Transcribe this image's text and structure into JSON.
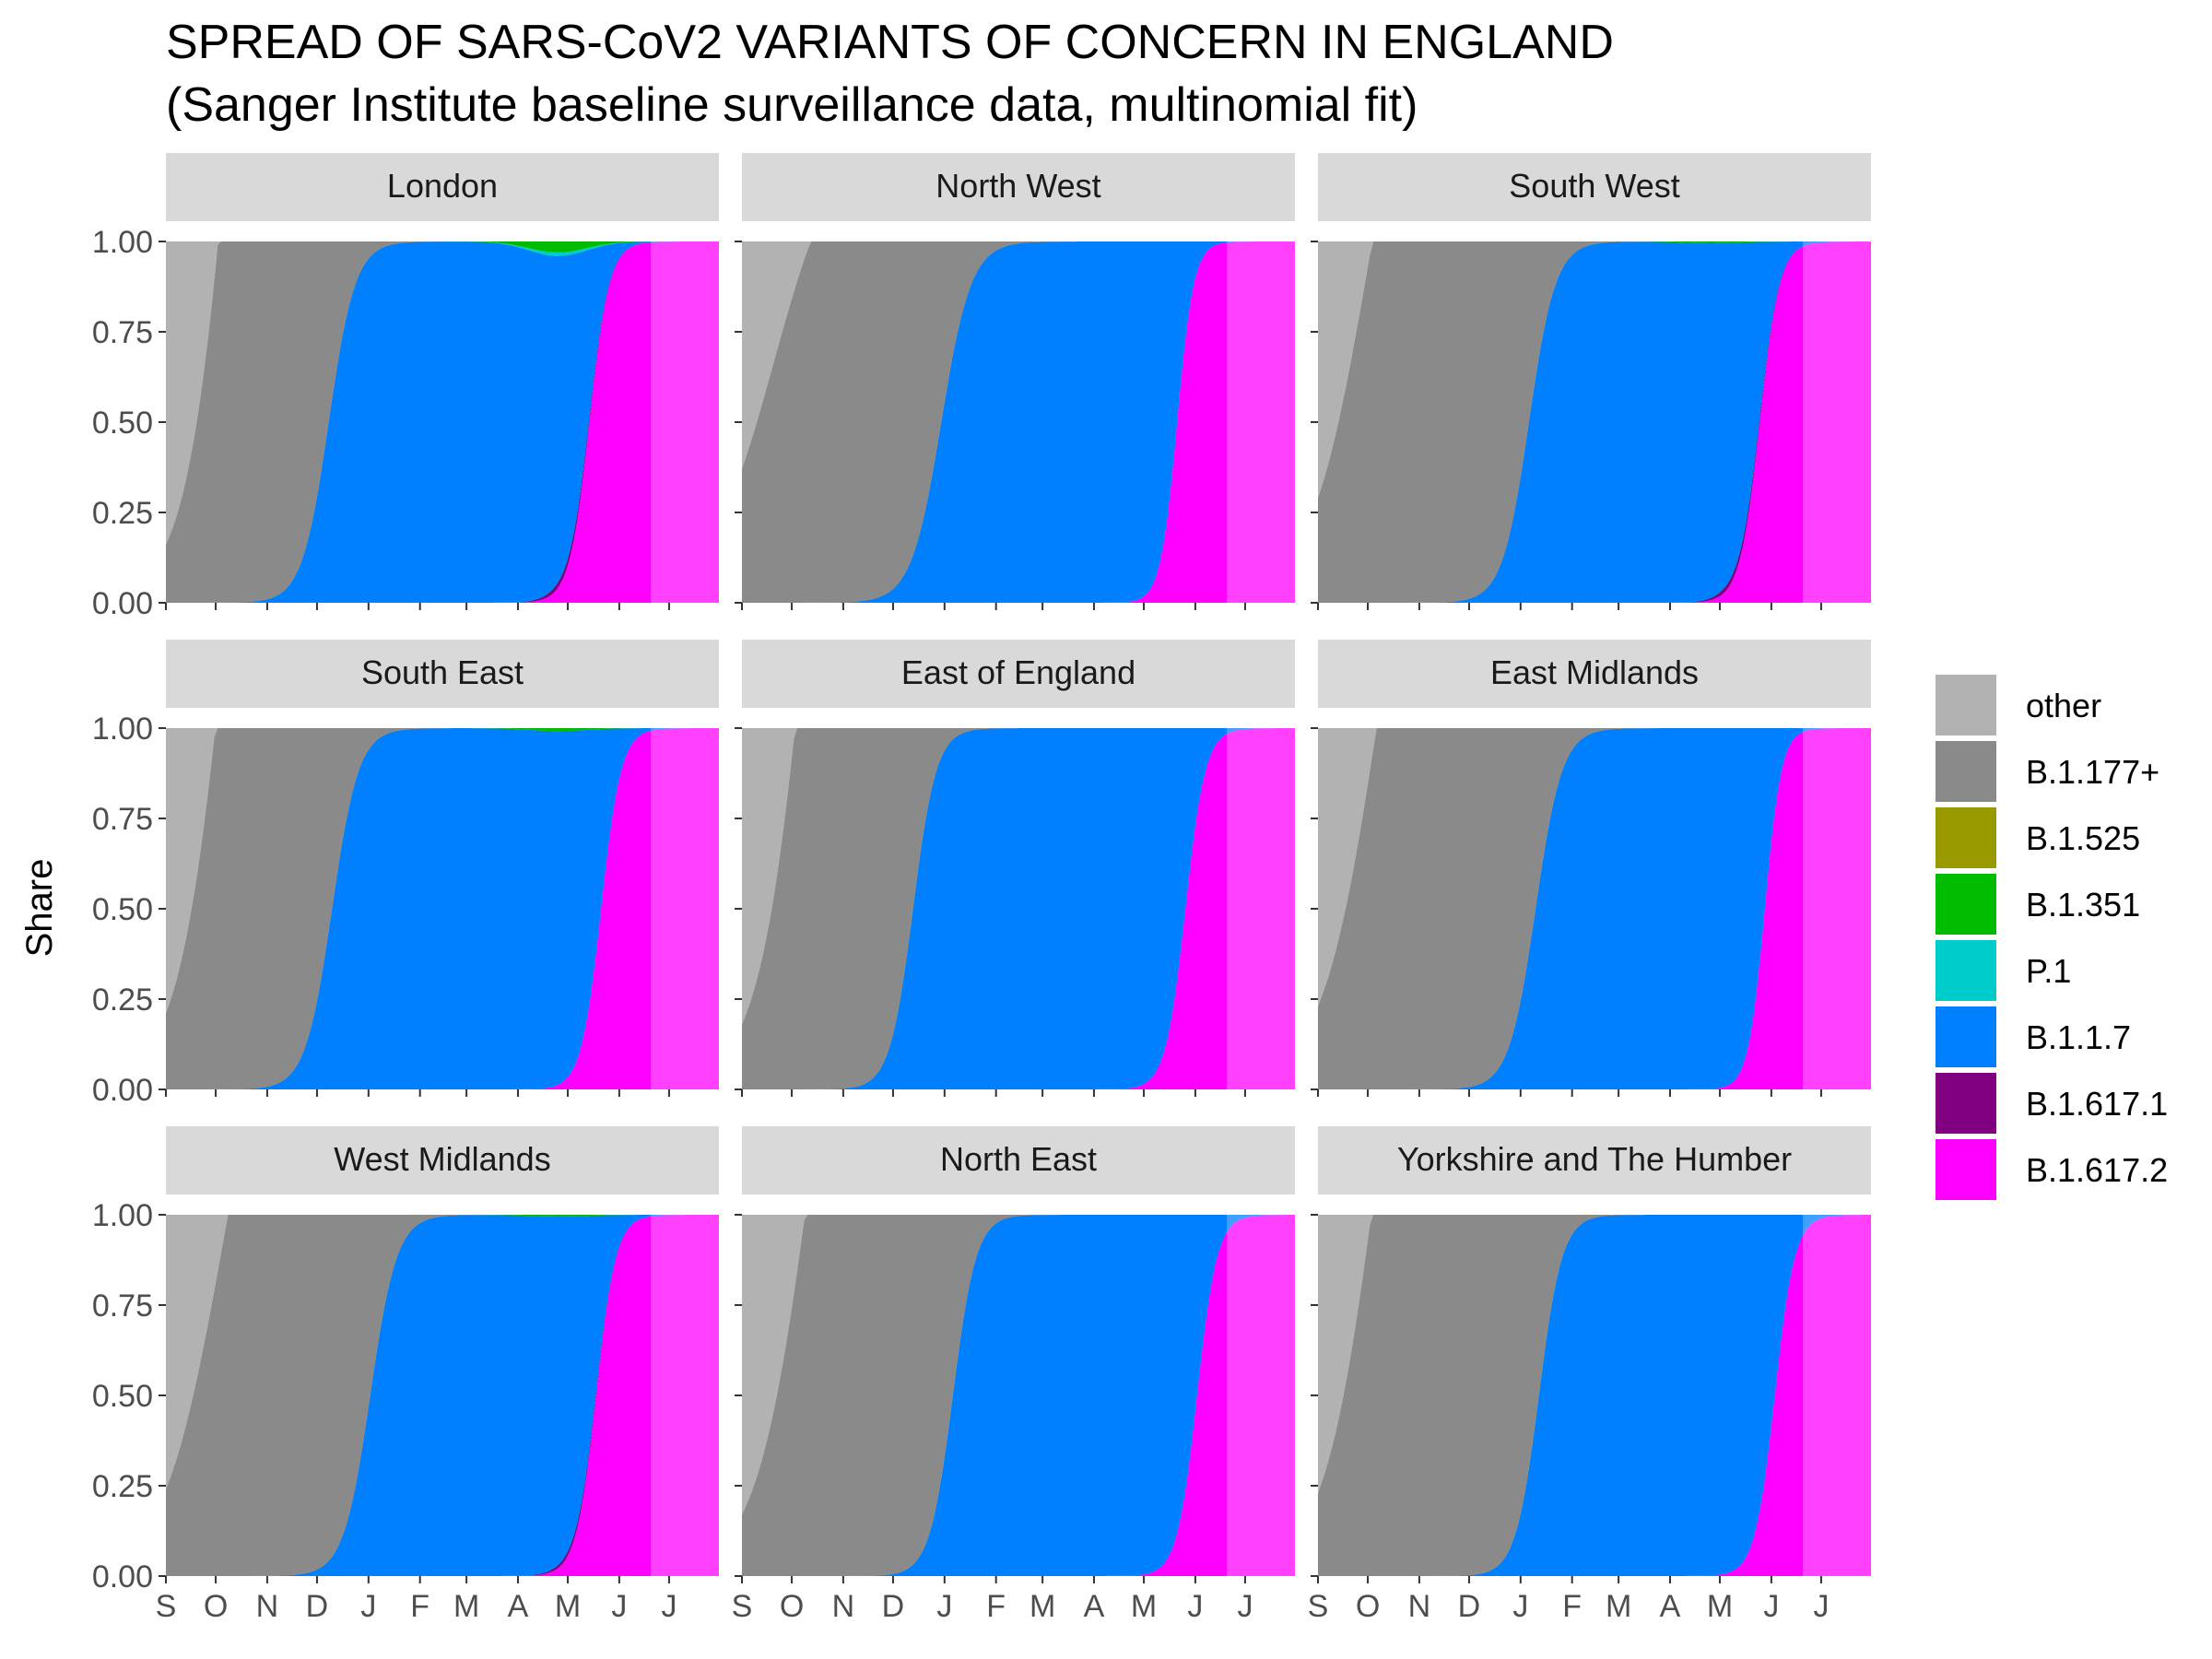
{
  "title": "SPREAD OF SARS-CoV2 VARIANTS OF CONCERN IN ENGLAND",
  "subtitle": "(Sanger Institute baseline surveillance data, multinomial fit)",
  "chart_data": {
    "type": "area",
    "stacked": true,
    "ylabel": "Share",
    "xlabel": "",
    "ylim": [
      0,
      1
    ],
    "y_ticks": [
      "0.00",
      "0.25",
      "0.50",
      "0.75",
      "1.00"
    ],
    "x_ticks": [
      "S",
      "O",
      "N",
      "D",
      "J",
      "F",
      "M",
      "A",
      "M",
      "J",
      "J"
    ],
    "x_range": [
      "2020-09-01",
      "2021-07-31"
    ],
    "x_tick_dates": [
      "2020-09-01",
      "2020-10-01",
      "2020-11-01",
      "2020-12-01",
      "2021-01-01",
      "2021-02-01",
      "2021-03-01",
      "2021-04-01",
      "2021-05-01",
      "2021-06-01",
      "2021-07-01"
    ],
    "forecast_start": "2021-06-20",
    "legend": {
      "position": "right",
      "entries": [
        {
          "name": "other",
          "color": "#b2b2b2"
        },
        {
          "name": "B.1.177+",
          "color": "#8a8a8a"
        },
        {
          "name": "B.1.525",
          "color": "#999900"
        },
        {
          "name": "B.1.351",
          "color": "#00bb00"
        },
        {
          "name": "P.1",
          "color": "#00cccc"
        },
        {
          "name": "B.1.1.7",
          "color": "#0080ff"
        },
        {
          "name": "B.1.617.1",
          "color": "#800080"
        },
        {
          "name": "B.1.617.2",
          "color": "#ff00ff"
        }
      ]
    },
    "panels": [
      {
        "name": "London",
        "b177_top_start": 0.16,
        "b177_mid": "2020-10-18",
        "b177_scale": 15,
        "b117_mid": "2020-12-08",
        "b117_scale": 8,
        "b16172_mid": "2021-05-14",
        "b16172_scale": 6,
        "b16171_max": 0.02,
        "b1351_peak": 0.03,
        "p1_peak": 0.01
      },
      {
        "name": "North West",
        "b177_top_start": 0.37,
        "b177_mid": "2020-09-20",
        "b177_scale": 20,
        "b117_mid": "2020-12-30",
        "b117_scale": 9,
        "b16172_mid": "2021-05-21",
        "b16172_scale": 5,
        "b16171_max": 0.0,
        "b1351_peak": 0.0,
        "p1_peak": 0.0
      },
      {
        "name": "South West",
        "b177_top_start": 0.29,
        "b177_mid": "2020-10-02",
        "b177_scale": 18,
        "b117_mid": "2021-01-06",
        "b117_scale": 8,
        "b16172_mid": "2021-05-25",
        "b16172_scale": 6,
        "b16171_max": 0.02,
        "b1351_peak": 0.005,
        "p1_peak": 0.0
      },
      {
        "name": "South East",
        "b177_top_start": 0.21,
        "b177_mid": "2020-10-14",
        "b177_scale": 16,
        "b117_mid": "2020-12-10",
        "b117_scale": 8,
        "b16172_mid": "2021-05-21",
        "b16172_scale": 6,
        "b16171_max": 0.0,
        "b1351_peak": 0.008,
        "p1_peak": 0.0
      },
      {
        "name": "East of England",
        "b177_top_start": 0.18,
        "b177_mid": "2020-10-18",
        "b177_scale": 16,
        "b117_mid": "2020-12-13",
        "b117_scale": 7,
        "b16172_mid": "2021-05-26",
        "b16172_scale": 6,
        "b16171_max": 0.0,
        "b1351_peak": 0.0,
        "p1_peak": 0.0
      },
      {
        "name": "East Midlands",
        "b177_top_start": 0.23,
        "b177_mid": "2020-10-10",
        "b177_scale": 18,
        "b117_mid": "2021-01-10",
        "b117_scale": 8,
        "b16172_mid": "2021-05-28",
        "b16172_scale": 5,
        "b16171_max": 0.0,
        "b1351_peak": 0.0,
        "p1_peak": 0.0
      },
      {
        "name": "West Midlands",
        "b177_top_start": 0.24,
        "b177_mid": "2020-10-05",
        "b177_scale": 18,
        "b117_mid": "2021-01-02",
        "b117_scale": 8,
        "b16172_mid": "2021-05-18",
        "b16172_scale": 6,
        "b16171_max": 0.015,
        "b1351_peak": 0.005,
        "p1_peak": 0.0
      },
      {
        "name": "North East",
        "b177_top_start": 0.17,
        "b177_mid": "2020-10-15",
        "b177_scale": 17,
        "b117_mid": "2021-01-06",
        "b117_scale": 7,
        "b16172_mid": "2021-06-02",
        "b16172_scale": 6,
        "b16171_max": 0.0,
        "b1351_peak": 0.0,
        "p1_peak": 0.0
      },
      {
        "name": "Yorkshire and The Humber",
        "b177_top_start": 0.23,
        "b177_mid": "2020-10-10",
        "b177_scale": 17,
        "b117_mid": "2021-01-12",
        "b117_scale": 7,
        "b16172_mid": "2021-06-03",
        "b16172_scale": 6,
        "b16171_max": 0.0,
        "b1351_peak": 0.0,
        "p1_peak": 0.0
      }
    ]
  }
}
